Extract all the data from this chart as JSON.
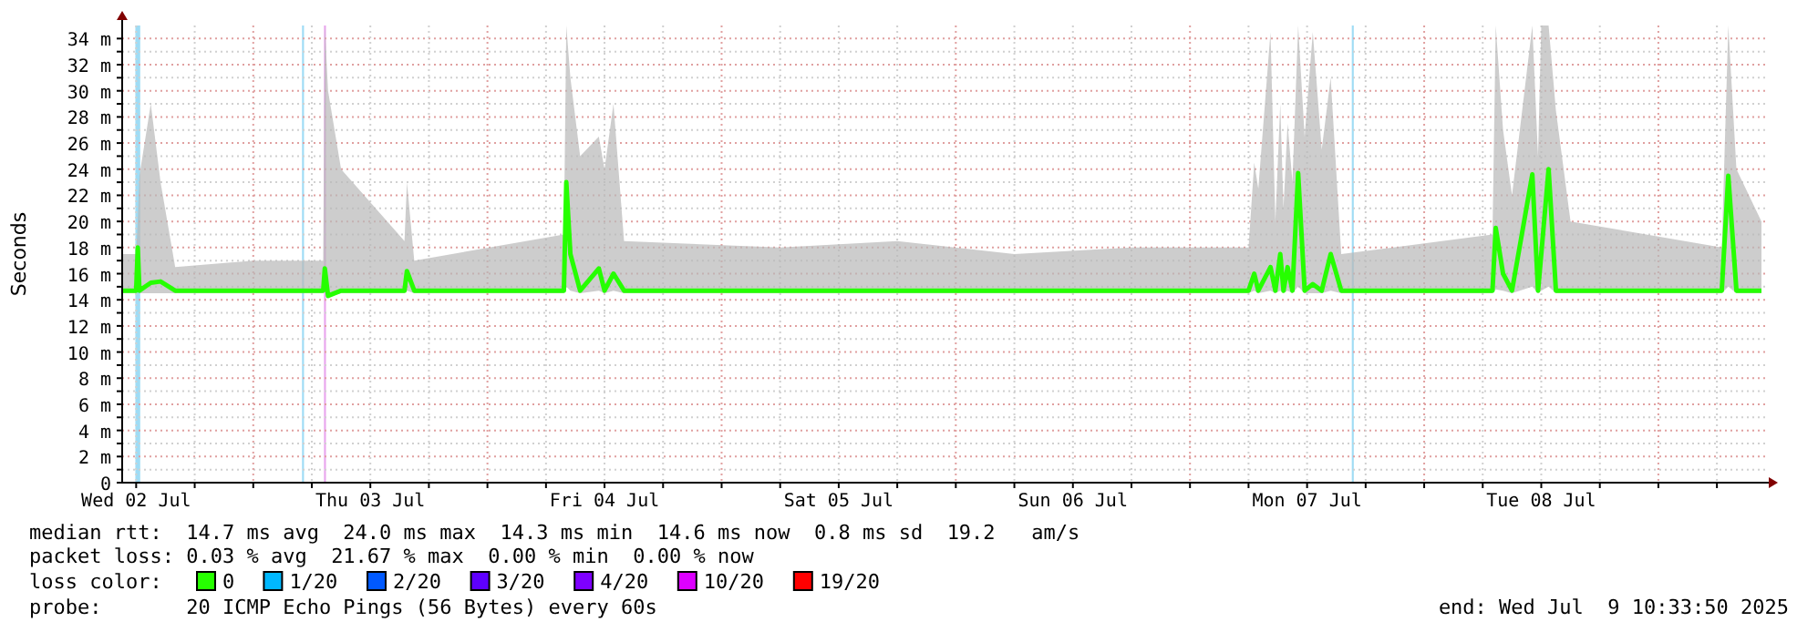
{
  "chart_data": {
    "type": "line",
    "ylabel": "Seconds",
    "legend_title": "loss color:",
    "legend": "bottom",
    "grid": true,
    "marker": "none",
    "line_style": "solid",
    "xlim": [
      "2025-07-02T10:34",
      "2025-07-09T10:34"
    ],
    "xticks": [
      {
        "value": "2025-07-02T12:00",
        "label": "Wed 02 Jul"
      },
      {
        "value": "2025-07-02T18:00",
        "label": null
      },
      {
        "value": "2025-07-03T00:00",
        "label": null
      },
      {
        "value": "2025-07-03T06:00",
        "label": null
      },
      {
        "value": "2025-07-03T12:00",
        "label": "Thu 03 Jul"
      },
      {
        "value": "2025-07-03T18:00",
        "label": null
      },
      {
        "value": "2025-07-04T00:00",
        "label": null
      },
      {
        "value": "2025-07-04T06:00",
        "label": null
      },
      {
        "value": "2025-07-04T12:00",
        "label": "Fri 04 Jul"
      },
      {
        "value": "2025-07-04T18:00",
        "label": null
      },
      {
        "value": "2025-07-05T00:00",
        "label": null
      },
      {
        "value": "2025-07-05T06:00",
        "label": null
      },
      {
        "value": "2025-07-05T12:00",
        "label": "Sat 05 Jul"
      },
      {
        "value": "2025-07-05T18:00",
        "label": null
      },
      {
        "value": "2025-07-06T00:00",
        "label": null
      },
      {
        "value": "2025-07-06T06:00",
        "label": null
      },
      {
        "value": "2025-07-06T12:00",
        "label": "Sun 06 Jul"
      },
      {
        "value": "2025-07-06T18:00",
        "label": null
      },
      {
        "value": "2025-07-07T00:00",
        "label": null
      },
      {
        "value": "2025-07-07T06:00",
        "label": null
      },
      {
        "value": "2025-07-07T12:00",
        "label": "Mon 07 Jul"
      },
      {
        "value": "2025-07-07T18:00",
        "label": null
      },
      {
        "value": "2025-07-08T00:00",
        "label": null
      },
      {
        "value": "2025-07-08T06:00",
        "label": null
      },
      {
        "value": "2025-07-08T12:00",
        "label": "Tue 08 Jul"
      },
      {
        "value": "2025-07-08T18:00",
        "label": null
      },
      {
        "value": "2025-07-09T00:00",
        "label": null
      },
      {
        "value": "2025-07-09T06:00",
        "label": null
      }
    ],
    "ylim": [
      0,
      35
    ],
    "yticks": [
      0,
      {
        "value": 1,
        "label": null
      },
      {
        "value": 2,
        "label": "2 m"
      },
      {
        "value": 3,
        "label": null
      },
      {
        "value": 4,
        "label": "4 m"
      },
      {
        "value": 5,
        "label": null
      },
      {
        "value": 6,
        "label": "6 m"
      },
      {
        "value": 7,
        "label": null
      },
      {
        "value": 8,
        "label": "8 m"
      },
      {
        "value": 9,
        "label": null
      },
      {
        "value": 10,
        "label": "10 m"
      },
      {
        "value": 11,
        "label": null
      },
      {
        "value": 12,
        "label": "12 m"
      },
      {
        "value": 13,
        "label": null
      },
      {
        "value": 14,
        "label": "14 m"
      },
      {
        "value": 15,
        "label": null
      },
      {
        "value": 16,
        "label": "16 m"
      },
      {
        "value": 17,
        "label": null
      },
      {
        "value": 18,
        "label": "18 m"
      },
      {
        "value": 19,
        "label": null
      },
      {
        "value": 20,
        "label": "20 m"
      },
      {
        "value": 21,
        "label": null
      },
      {
        "value": 22,
        "label": "22 m"
      },
      {
        "value": 23,
        "label": null
      },
      {
        "value": 24,
        "label": "24 m"
      },
      {
        "value": 25,
        "label": null
      },
      {
        "value": 26,
        "label": "26 m"
      },
      {
        "value": 27,
        "label": null
      },
      {
        "value": 28,
        "label": "28 m"
      },
      {
        "value": 29,
        "label": null
      },
      {
        "value": 30,
        "label": "30 m"
      },
      {
        "value": 31,
        "label": null
      },
      {
        "value": 32,
        "label": "32 m"
      },
      {
        "value": 33,
        "label": null
      },
      {
        "value": 34,
        "label": "34 m"
      }
    ],
    "x": [
      "2025-07-02T10:34",
      "2025-07-02T12:00",
      "2025-07-02T12:10",
      "2025-07-02T12:20",
      "2025-07-02T13:30",
      "2025-07-02T14:30",
      "2025-07-02T16:00",
      "2025-07-03T00:00",
      "2025-07-03T07:10",
      "2025-07-03T07:20",
      "2025-07-03T07:40",
      "2025-07-03T09:00",
      "2025-07-03T15:30",
      "2025-07-03T15:45",
      "2025-07-03T16:30",
      "2025-07-04T07:50",
      "2025-07-04T08:05",
      "2025-07-04T08:30",
      "2025-07-04T09:30",
      "2025-07-04T11:25",
      "2025-07-04T12:00",
      "2025-07-04T12:55",
      "2025-07-04T14:00",
      "2025-07-05T06:00",
      "2025-07-05T18:00",
      "2025-07-06T06:00",
      "2025-07-06T18:00",
      "2025-07-07T06:00",
      "2025-07-07T06:35",
      "2025-07-07T07:00",
      "2025-07-07T08:15",
      "2025-07-07T08:45",
      "2025-07-07T09:15",
      "2025-07-07T09:35",
      "2025-07-07T10:00",
      "2025-07-07T10:30",
      "2025-07-07T11:05",
      "2025-07-07T11:45",
      "2025-07-07T12:35",
      "2025-07-07T13:30",
      "2025-07-07T14:25",
      "2025-07-07T15:30",
      "2025-07-08T07:00",
      "2025-07-08T07:20",
      "2025-07-08T08:05",
      "2025-07-08T09:00",
      "2025-07-08T11:05",
      "2025-07-08T11:40",
      "2025-07-08T12:00",
      "2025-07-08T12:45",
      "2025-07-08T13:30",
      "2025-07-08T15:00",
      "2025-07-09T06:30",
      "2025-07-09T07:10",
      "2025-07-09T08:00",
      "2025-07-09T10:34"
    ],
    "series": [
      {
        "name": "0",
        "color": "#26ff00",
        "values": [
          14.7,
          14.7,
          18,
          14.7,
          15.3,
          15.4,
          14.7,
          14.7,
          14.7,
          16.4,
          14.3,
          14.7,
          14.7,
          16.2,
          14.7,
          14.7,
          23,
          17.5,
          14.7,
          16.4,
          14.7,
          16,
          14.7,
          14.7,
          14.7,
          14.7,
          14.7,
          14.7,
          16,
          14.7,
          16.5,
          14.7,
          17.5,
          14.7,
          16.5,
          14.7,
          23.7,
          14.7,
          15.2,
          14.7,
          17.5,
          14.7,
          14.7,
          19.5,
          16,
          14.7,
          23.6,
          14.7,
          17.5,
          24,
          14.7,
          14.7,
          14.7,
          23.5,
          14.7,
          14.7
        ],
        "lower": [
          14.5,
          14.5,
          14.7,
          14.5,
          14.5,
          14.5,
          14.5,
          14.5,
          14.5,
          14.7,
          14.2,
          14.5,
          14.5,
          14.7,
          14.5,
          14.5,
          15,
          14.7,
          14.5,
          14.7,
          14.5,
          14.7,
          14.5,
          14.5,
          14.5,
          14.5,
          14.5,
          14.5,
          14.7,
          14.5,
          14.7,
          14.5,
          14.7,
          14.5,
          14.7,
          14.5,
          15,
          14.5,
          14.5,
          14.5,
          14.7,
          14.5,
          14.5,
          14.8,
          14.7,
          14.5,
          15,
          14.5,
          14.7,
          15,
          14.5,
          14.5,
          14.5,
          15,
          14.5,
          14.5
        ],
        "upper": [
          17.5,
          17.5,
          20,
          23.5,
          29,
          23,
          16.5,
          17,
          17,
          35,
          30,
          24,
          18.5,
          23,
          17,
          19,
          35,
          31,
          25,
          26.5,
          24,
          29,
          18.5,
          18,
          18.5,
          17.5,
          18,
          18,
          24.5,
          22.5,
          34.5,
          20,
          29,
          21,
          27.5,
          23,
          35,
          26.5,
          34.5,
          25.5,
          31,
          17.5,
          19,
          35,
          27,
          22,
          35,
          25,
          35,
          35,
          28.5,
          20,
          18,
          35,
          24,
          20
        ]
      },
      {
        "name": "1/20",
        "color": "#00b8ff",
        "values": [
          null,
          null,
          null,
          null,
          null,
          null,
          null,
          null,
          null,
          null,
          null,
          null,
          null,
          null,
          null,
          null,
          null,
          null,
          null,
          null,
          null,
          null,
          null,
          null,
          null,
          null,
          null,
          null,
          null,
          null,
          null,
          null,
          null,
          null,
          null,
          null,
          null,
          null,
          null,
          null,
          null,
          null,
          null,
          null,
          null,
          null,
          null,
          null,
          null,
          null,
          null,
          null,
          null,
          null,
          null,
          null
        ]
      },
      {
        "name": "2/20",
        "color": "#0059ff",
        "values": [
          null,
          null,
          null,
          null,
          null,
          null,
          null,
          null,
          null,
          null,
          null,
          null,
          null,
          null,
          null,
          null,
          null,
          null,
          null,
          null,
          null,
          null,
          null,
          null,
          null,
          null,
          null,
          null,
          null,
          null,
          null,
          null,
          null,
          null,
          null,
          null,
          null,
          null,
          null,
          null,
          null,
          null,
          null,
          null,
          null,
          null,
          null,
          null,
          null,
          null,
          null,
          null,
          null,
          null,
          null,
          null
        ]
      },
      {
        "name": "3/20",
        "color": "#5e00ff",
        "values": [
          null,
          null,
          null,
          null,
          null,
          null,
          null,
          null,
          null,
          null,
          null,
          null,
          null,
          null,
          null,
          null,
          null,
          null,
          null,
          null,
          null,
          null,
          null,
          null,
          null,
          null,
          null,
          null,
          null,
          null,
          null,
          null,
          null,
          null,
          null,
          null,
          null,
          null,
          null,
          null,
          null,
          null,
          null,
          null,
          null,
          null,
          null,
          null,
          null,
          null,
          null,
          null,
          null,
          null,
          null,
          null
        ]
      },
      {
        "name": "4/20",
        "color": "#7e00ff",
        "values": [
          null,
          null,
          null,
          null,
          null,
          null,
          null,
          null,
          null,
          null,
          null,
          null,
          null,
          null,
          null,
          null,
          null,
          null,
          null,
          null,
          null,
          null,
          null,
          null,
          null,
          null,
          null,
          null,
          null,
          null,
          null,
          null,
          null,
          null,
          null,
          null,
          null,
          null,
          null,
          null,
          null,
          null,
          null,
          null,
          null,
          null,
          null,
          null,
          null,
          null,
          null,
          null,
          null,
          null,
          null,
          null
        ]
      },
      {
        "name": "10/20",
        "color": "#dd00ff",
        "values": [
          null,
          null,
          null,
          null,
          null,
          null,
          null,
          null,
          null,
          null,
          null,
          null,
          null,
          null,
          null,
          null,
          null,
          null,
          null,
          null,
          null,
          null,
          null,
          null,
          null,
          null,
          null,
          null,
          null,
          null,
          null,
          null,
          null,
          null,
          null,
          null,
          null,
          null,
          null,
          null,
          null,
          null,
          null,
          null,
          null,
          null,
          null,
          null,
          null,
          null,
          null,
          null,
          null,
          null,
          null,
          null
        ]
      },
      {
        "name": "19/20",
        "color": "#ff0000",
        "values": [
          null,
          null,
          null,
          null,
          null,
          null,
          null,
          null,
          null,
          null,
          null,
          null,
          null,
          null,
          null,
          null,
          null,
          null,
          null,
          null,
          null,
          null,
          null,
          null,
          null,
          null,
          null,
          null,
          null,
          null,
          null,
          null,
          null,
          null,
          null,
          null,
          null,
          null,
          null,
          null,
          null,
          null,
          null,
          null,
          null,
          null,
          null,
          null,
          null,
          null,
          null,
          null,
          null,
          null,
          null,
          null
        ]
      }
    ],
    "bands": [
      {
        "axis": "x",
        "from": "2025-07-02T11:55",
        "to": "2025-07-02T12:25",
        "color": "#9fdcf5"
      },
      {
        "axis": "x",
        "from": "2025-07-03T05:00",
        "to": "2025-07-03T05:12",
        "color": "#9fdcf5"
      },
      {
        "axis": "x",
        "from": "2025-07-03T07:15",
        "to": "2025-07-03T07:27",
        "color": "#e9a6ee"
      },
      {
        "axis": "x",
        "from": "2025-07-07T16:35",
        "to": "2025-07-07T16:47",
        "color": "#9fdcf5"
      }
    ],
    "annotations": [
      "median rtt:  14.7 ms avg  24.0 ms max  14.3 ms min  14.6 ms now  0.8 ms sd  19.2   am/s",
      "packet loss: 0.03 % avg  21.67 % max  0.00 % min  0.00 % now",
      "probe:       20 ICMP Echo Pings (56 Bytes) every 60s",
      "end: Wed Jul  9 10:33:50 2025"
    ]
  }
}
